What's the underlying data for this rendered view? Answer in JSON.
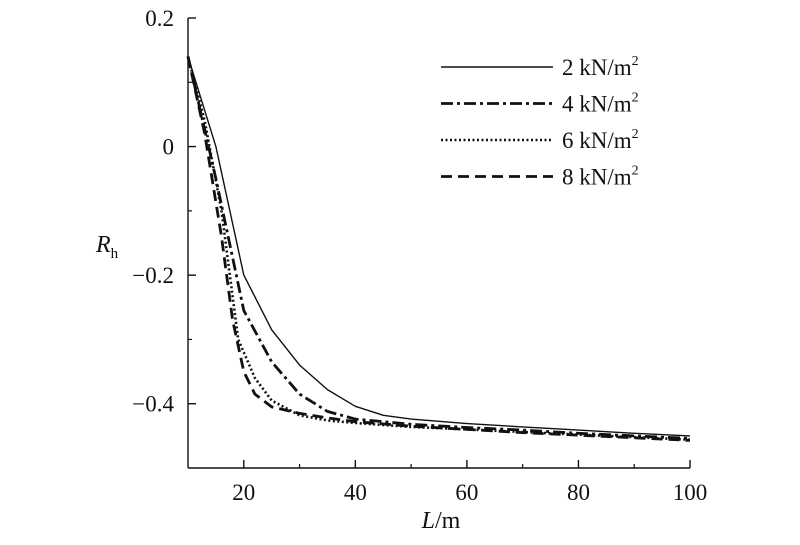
{
  "chart_data": {
    "type": "line",
    "xlabel": {
      "italic": "L",
      "rest": "/m"
    },
    "ylabel": {
      "italic": "R",
      "sub": "h"
    },
    "xlim": [
      10,
      100
    ],
    "ylim": [
      -0.5,
      0.2
    ],
    "x_ticks": [
      20,
      40,
      60,
      80,
      100
    ],
    "y_ticks": [
      0.2,
      0,
      -0.2,
      -0.4
    ],
    "y_tick_labels": [
      "0.2",
      "0",
      "−0.2",
      "−0.4"
    ],
    "grid": false,
    "legend_position": "top-right",
    "series": [
      {
        "name": "2 kN/m",
        "sup": "2",
        "dash": "",
        "width": 1.4,
        "points": [
          [
            10,
            0.14
          ],
          [
            15,
            0.0
          ],
          [
            20,
            -0.2
          ],
          [
            25,
            -0.285
          ],
          [
            30,
            -0.34
          ],
          [
            35,
            -0.378
          ],
          [
            40,
            -0.404
          ],
          [
            45,
            -0.418
          ],
          [
            50,
            -0.424
          ],
          [
            60,
            -0.431
          ],
          [
            70,
            -0.436
          ],
          [
            80,
            -0.441
          ],
          [
            90,
            -0.446
          ],
          [
            100,
            -0.45
          ]
        ]
      },
      {
        "name": "4 kN/m",
        "sup": "2",
        "dash": "12,4,3,4",
        "width": 2.8,
        "points": [
          [
            10,
            0.14
          ],
          [
            15,
            -0.05
          ],
          [
            20,
            -0.255
          ],
          [
            25,
            -0.335
          ],
          [
            30,
            -0.385
          ],
          [
            35,
            -0.412
          ],
          [
            40,
            -0.424
          ],
          [
            50,
            -0.432
          ],
          [
            60,
            -0.437
          ],
          [
            70,
            -0.441
          ],
          [
            80,
            -0.446
          ],
          [
            90,
            -0.45
          ],
          [
            100,
            -0.454
          ]
        ]
      },
      {
        "name": "6 kN/m",
        "sup": "2",
        "dash": "2,2.5",
        "width": 2.6,
        "points": [
          [
            10,
            0.14
          ],
          [
            13,
            0.04
          ],
          [
            16,
            -0.1
          ],
          [
            19,
            -0.3
          ],
          [
            22,
            -0.36
          ],
          [
            25,
            -0.395
          ],
          [
            30,
            -0.418
          ],
          [
            35,
            -0.426
          ],
          [
            40,
            -0.43
          ],
          [
            50,
            -0.436
          ],
          [
            60,
            -0.44
          ],
          [
            70,
            -0.444
          ],
          [
            80,
            -0.448
          ],
          [
            90,
            -0.452
          ],
          [
            100,
            -0.456
          ]
        ]
      },
      {
        "name": "8 kN/m",
        "sup": "2",
        "dash": "11,6",
        "width": 2.8,
        "points": [
          [
            10,
            0.14
          ],
          [
            13,
            0.02
          ],
          [
            16,
            -0.14
          ],
          [
            18,
            -0.27
          ],
          [
            20,
            -0.35
          ],
          [
            22,
            -0.385
          ],
          [
            25,
            -0.405
          ],
          [
            30,
            -0.415
          ],
          [
            35,
            -0.422
          ],
          [
            40,
            -0.428
          ],
          [
            50,
            -0.435
          ],
          [
            60,
            -0.44
          ],
          [
            70,
            -0.445
          ],
          [
            80,
            -0.449
          ],
          [
            90,
            -0.453
          ],
          [
            100,
            -0.457
          ]
        ]
      }
    ]
  }
}
